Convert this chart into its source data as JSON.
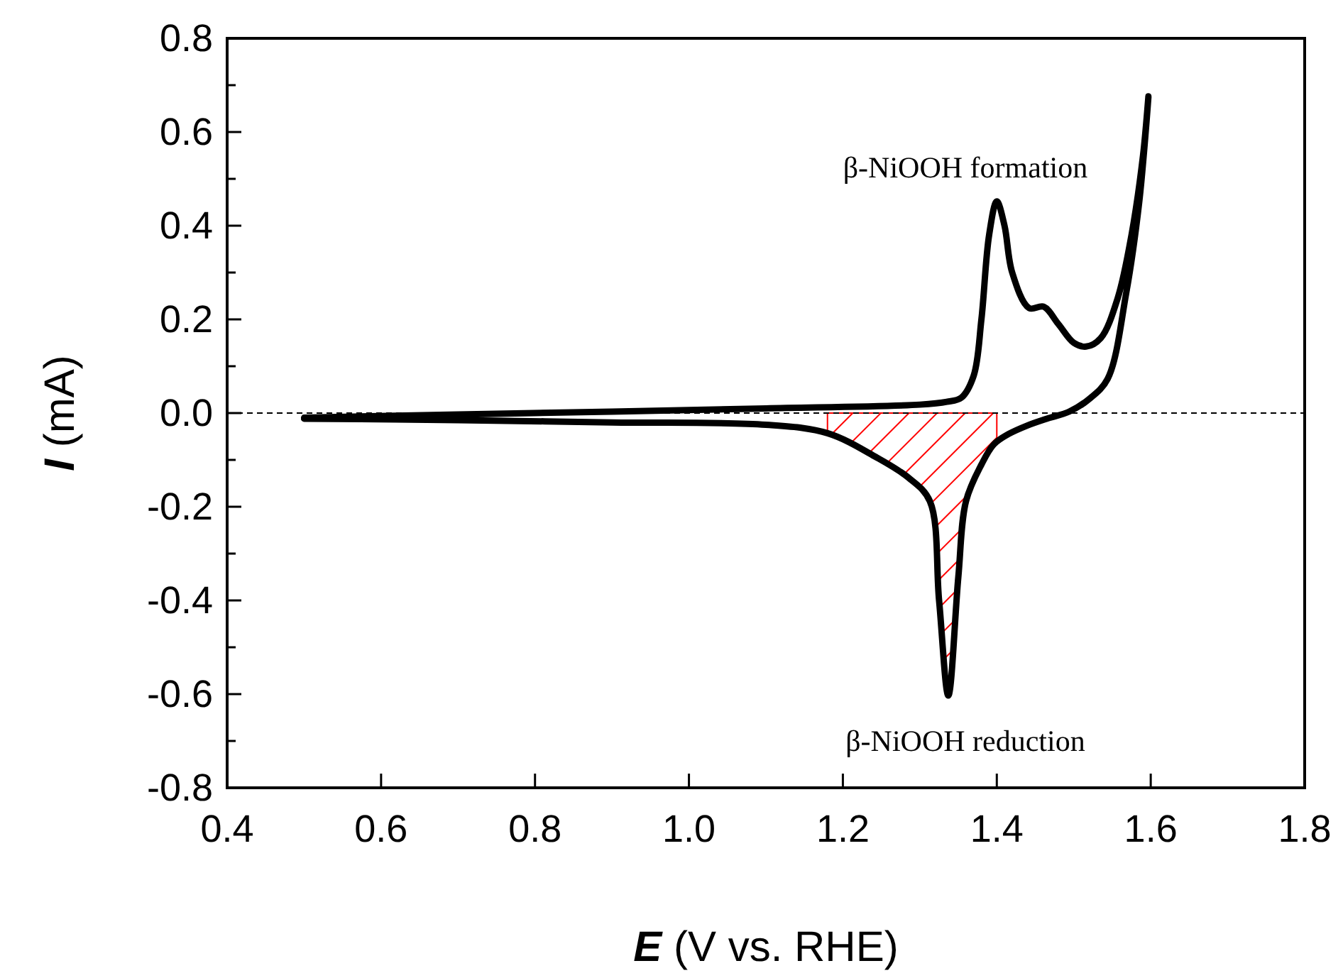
{
  "chart_data": {
    "type": "line",
    "xlabel": "E (V vs. RHE)",
    "ylabel": "I (mA)",
    "xlim": [
      0.4,
      1.8
    ],
    "ylim": [
      -0.8,
      0.8
    ],
    "xticks": [
      0.4,
      0.6,
      0.8,
      {
        "value": 1,
        "label": "1.0"
      },
      1.2,
      1.4,
      1.6,
      1.8
    ],
    "yticks": [
      -0.8,
      {
        "value": -0.7,
        "label": null
      },
      -0.6,
      {
        "value": -0.5,
        "label": null
      },
      -0.4,
      {
        "value": -0.3,
        "label": null
      },
      -0.2,
      {
        "value": -0.1,
        "label": null
      },
      {
        "value": 0,
        "label": "0.0"
      },
      {
        "value": 0.1,
        "label": null
      },
      0.2,
      {
        "value": 0.3,
        "label": null
      },
      0.4,
      {
        "value": 0.5,
        "label": null
      },
      0.6,
      {
        "value": 0.7,
        "label": null
      },
      0.8
    ],
    "grid": false,
    "marker": "none",
    "line_style": "solid",
    "series": [
      {
        "color": "#000000",
        "x": [
          0.5,
          0.7,
          0.9,
          1.1,
          1.3,
          1.335,
          1.354,
          1.37,
          1.38,
          1.39,
          1.4,
          1.41,
          1.42,
          1.442,
          1.461,
          1.48,
          1.5,
          1.516,
          1.535,
          1.557,
          1.575,
          1.59,
          1.597,
          1.585,
          1.568,
          1.544,
          1.52,
          1.494,
          1.465,
          1.439,
          1.415,
          1.396,
          1.38,
          1.36,
          1.35,
          1.337,
          1.325,
          1.313,
          1.286,
          1.243,
          1.18,
          1.1,
          0.9,
          0.7,
          0.5
        ],
        "values": [
          -0.01,
          -0.003,
          0.003,
          0.01,
          0.018,
          0.024,
          0.033,
          0.08,
          0.2,
          0.38,
          0.452,
          0.4,
          0.3,
          0.224,
          0.227,
          0.19,
          0.15,
          0.142,
          0.16,
          0.245,
          0.38,
          0.55,
          0.676,
          0.45,
          0.255,
          0.073,
          0.03,
          0.003,
          -0.012,
          -0.027,
          -0.045,
          -0.067,
          -0.11,
          -0.188,
          -0.35,
          -0.603,
          -0.4,
          -0.188,
          -0.139,
          -0.094,
          -0.043,
          -0.025,
          -0.02,
          -0.015,
          -0.012
        ]
      },
      {
        "type": "area",
        "color": "#ff0000",
        "x": [
          1.18,
          1.243,
          1.286,
          1.313,
          1.325,
          1.337,
          1.35,
          1.36,
          1.38,
          1.396,
          1.4
        ],
        "values": [
          -0.043,
          -0.094,
          -0.139,
          -0.188,
          -0.4,
          -0.603,
          -0.35,
          -0.188,
          -0.11,
          -0.067,
          -0.06
        ]
      }
    ],
    "ref_lines": [
      {
        "axis": "y",
        "value": 0,
        "color": "#000000",
        "line_style": "dashed"
      }
    ],
    "annotations": [
      "β-NiOOH formation",
      "β-NiOOH reduction"
    ]
  }
}
